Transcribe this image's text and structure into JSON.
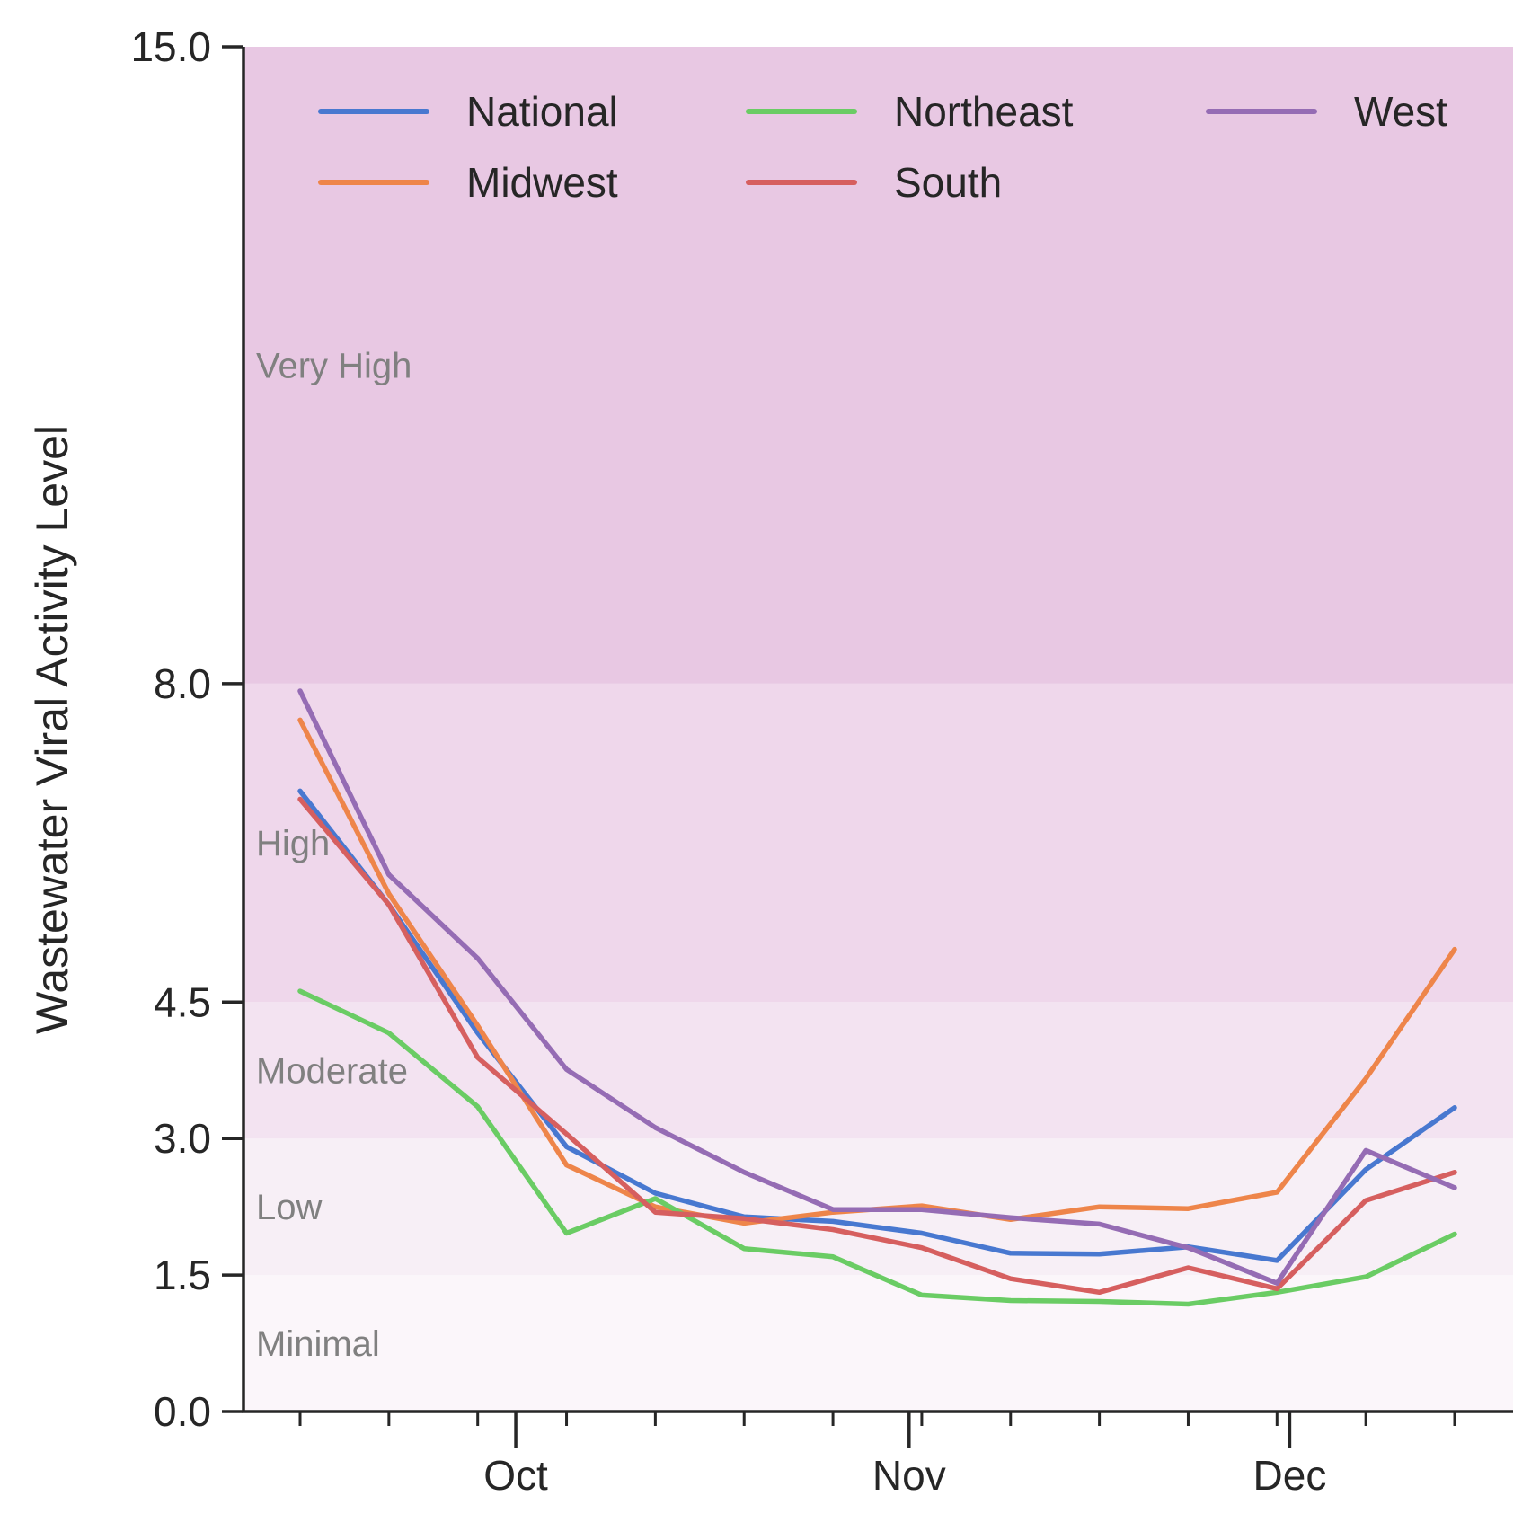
{
  "chart_data": {
    "type": "line",
    "title": "",
    "xlabel": "",
    "ylabel": "Wastewater Viral Activity Level",
    "ylim": [
      0,
      15
    ],
    "yticks": [
      "0.0",
      "1.5",
      "3.0",
      "4.5",
      "8.0",
      "15.0"
    ],
    "ytick_values": [
      0,
      1.5,
      3.0,
      4.5,
      8.0,
      15.0
    ],
    "x": [
      "2024-09-14",
      "2024-09-21",
      "2024-09-28",
      "2024-10-05",
      "2024-10-12",
      "2024-10-19",
      "2024-10-26",
      "2024-11-02",
      "2024-11-09",
      "2024-11-16",
      "2024-11-23",
      "2024-11-30",
      "2024-12-07",
      "2024-12-14"
    ],
    "xlim": [
      "2024-09-08",
      "2024-12-20"
    ],
    "major_xticks": [
      {
        "label": "Oct",
        "date": "2024-10-01"
      },
      {
        "label": "Nov",
        "date": "2024-11-01"
      },
      {
        "label": "Dec",
        "date": "2024-12-01"
      }
    ],
    "grid": false,
    "legend_position": "top",
    "legend_columns": 3,
    "bands": [
      {
        "label": "Minimal",
        "from": 0,
        "to": 1.5,
        "color": "#fbf6fa"
      },
      {
        "label": "Low",
        "from": 1.5,
        "to": 3.0,
        "color": "#f7eff6"
      },
      {
        "label": "Moderate",
        "from": 3.0,
        "to": 4.5,
        "color": "#f3e3f1"
      },
      {
        "label": "High",
        "from": 4.5,
        "to": 8.0,
        "color": "#efd7eb"
      },
      {
        "label": "Very High",
        "from": 8.0,
        "to": 15.0,
        "color": "#e8c8e3"
      }
    ],
    "series": [
      {
        "name": "National",
        "color": "#4878d0",
        "values": [
          6.82,
          5.57,
          4.16,
          2.91,
          2.4,
          2.14,
          2.09,
          1.96,
          1.74,
          1.73,
          1.81,
          1.66,
          2.66,
          3.34
        ]
      },
      {
        "name": "Midwest",
        "color": "#ee854a",
        "values": [
          7.6,
          5.69,
          4.24,
          2.71,
          2.25,
          2.07,
          2.19,
          2.26,
          2.11,
          2.25,
          2.23,
          2.41,
          3.66,
          5.08
        ]
      },
      {
        "name": "Northeast",
        "color": "#6acc64",
        "values": [
          4.62,
          4.16,
          3.35,
          1.96,
          2.34,
          1.79,
          1.7,
          1.28,
          1.22,
          1.21,
          1.18,
          1.31,
          1.48,
          1.95
        ]
      },
      {
        "name": "South",
        "color": "#d65f5f",
        "values": [
          6.73,
          5.57,
          3.89,
          3.05,
          2.19,
          2.12,
          2.0,
          1.8,
          1.46,
          1.31,
          1.58,
          1.35,
          2.32,
          2.63
        ]
      },
      {
        "name": "West",
        "color": "#956cb4",
        "values": [
          7.92,
          5.9,
          4.98,
          3.76,
          3.12,
          2.63,
          2.22,
          2.22,
          2.13,
          2.06,
          1.8,
          1.41,
          2.87,
          2.46
        ]
      }
    ]
  }
}
